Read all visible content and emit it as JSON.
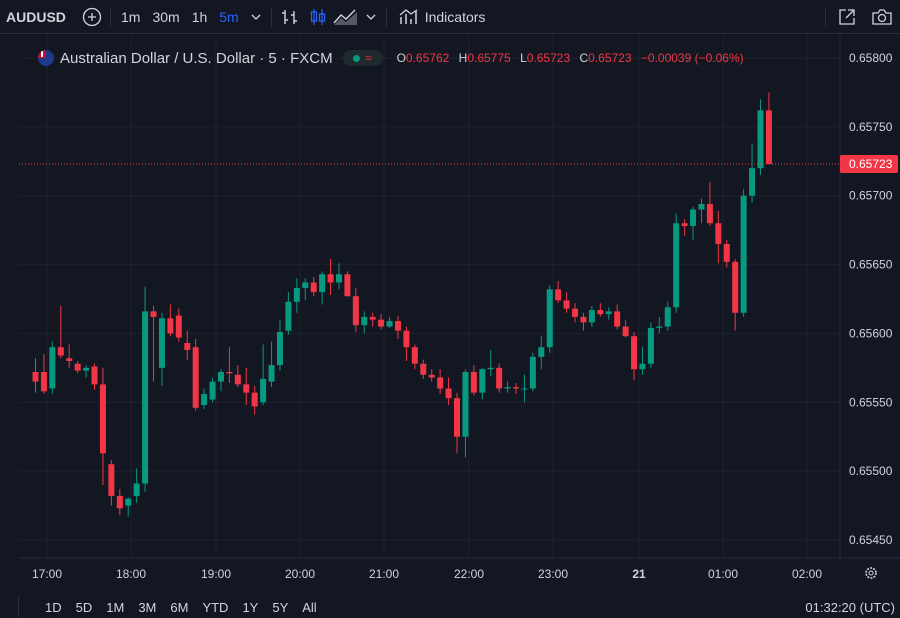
{
  "toolbar": {
    "symbol": "AUDUSD",
    "intervals": [
      "1m",
      "30m",
      "1h",
      "5m"
    ],
    "active_interval": "5m",
    "indicators_label": "Indicators"
  },
  "legend": {
    "title": "Australian Dollar / U.S. Dollar · 5 · FXCM",
    "ohlc": [
      {
        "k": "O",
        "v": "0.65762"
      },
      {
        "k": "H",
        "v": "0.65775"
      },
      {
        "k": "L",
        "v": "0.65723"
      },
      {
        "k": "C",
        "v": "0.65723"
      }
    ],
    "change": "−0.00039 (−0.06%)"
  },
  "colors": {
    "up": "#089981",
    "down": "#f23645",
    "background": "#131722",
    "grid": "#1e222d",
    "text": "#d1d4dc",
    "active": "#2962ff"
  },
  "chart_data": {
    "type": "candlestick",
    "ylim": [
      0.6544,
      0.6581
    ],
    "y_ticks": [
      "0.65800",
      "0.65750",
      "0.65700",
      "0.65650",
      "0.65600",
      "0.65550",
      "0.65500",
      "0.65450"
    ],
    "x_ticks": [
      "17:00",
      "18:00",
      "19:00",
      "20:00",
      "21:00",
      "22:00",
      "23:00",
      "21",
      "01:00",
      "02:00"
    ],
    "last_price": "0.65723",
    "candles": [
      [
        0.65572,
        0.65582,
        0.65557,
        0.65565
      ],
      [
        0.65572,
        0.65585,
        0.65556,
        0.65558
      ],
      [
        0.6556,
        0.65594,
        0.65556,
        0.6559
      ],
      [
        0.6559,
        0.6562,
        0.65582,
        0.65584
      ],
      [
        0.65582,
        0.65592,
        0.65575,
        0.6558
      ],
      [
        0.65578,
        0.6558,
        0.65571,
        0.65573
      ],
      [
        0.65573,
        0.65577,
        0.65568,
        0.65575
      ],
      [
        0.65576,
        0.65578,
        0.65559,
        0.65563
      ],
      [
        0.65563,
        0.65575,
        0.6549,
        0.65513
      ],
      [
        0.65505,
        0.65508,
        0.65475,
        0.65482
      ],
      [
        0.65482,
        0.65487,
        0.65468,
        0.65473
      ],
      [
        0.65475,
        0.65481,
        0.65467,
        0.6548
      ],
      [
        0.65482,
        0.65502,
        0.65477,
        0.65491
      ],
      [
        0.65491,
        0.65634,
        0.65485,
        0.65616
      ],
      [
        0.65616,
        0.6562,
        0.65565,
        0.65612
      ],
      [
        0.65575,
        0.65615,
        0.65562,
        0.65611
      ],
      [
        0.65611,
        0.65621,
        0.65598,
        0.656
      ],
      [
        0.65613,
        0.65618,
        0.65594,
        0.65597
      ],
      [
        0.65593,
        0.65602,
        0.65581,
        0.65588
      ],
      [
        0.6559,
        0.65596,
        0.65544,
        0.65546
      ],
      [
        0.65548,
        0.6556,
        0.65545,
        0.65556
      ],
      [
        0.65552,
        0.65568,
        0.6555,
        0.65565
      ],
      [
        0.65565,
        0.65574,
        0.65558,
        0.65572
      ],
      [
        0.65572,
        0.6559,
        0.65564,
        0.65571
      ],
      [
        0.6557,
        0.65577,
        0.65561,
        0.65563
      ],
      [
        0.65563,
        0.65575,
        0.65548,
        0.65557
      ],
      [
        0.65557,
        0.65562,
        0.65541,
        0.65547
      ],
      [
        0.6555,
        0.65592,
        0.65548,
        0.65567
      ],
      [
        0.65565,
        0.65594,
        0.65561,
        0.65577
      ],
      [
        0.65577,
        0.6561,
        0.65573,
        0.65601
      ],
      [
        0.65602,
        0.6563,
        0.65599,
        0.65623
      ],
      [
        0.65623,
        0.6564,
        0.65615,
        0.65633
      ],
      [
        0.65633,
        0.6564,
        0.65624,
        0.65637
      ],
      [
        0.65637,
        0.65641,
        0.65627,
        0.6563
      ],
      [
        0.6563,
        0.65645,
        0.65621,
        0.65643
      ],
      [
        0.65643,
        0.65654,
        0.65628,
        0.65637
      ],
      [
        0.65637,
        0.65651,
        0.65632,
        0.65643
      ],
      [
        0.65643,
        0.65645,
        0.65627,
        0.65627
      ],
      [
        0.65627,
        0.65633,
        0.65601,
        0.65606
      ],
      [
        0.65606,
        0.65616,
        0.656,
        0.65612
      ],
      [
        0.65612,
        0.65615,
        0.65605,
        0.6561
      ],
      [
        0.6561,
        0.65614,
        0.65603,
        0.65605
      ],
      [
        0.65605,
        0.65612,
        0.65604,
        0.65609
      ],
      [
        0.65609,
        0.65613,
        0.65596,
        0.65602
      ],
      [
        0.65602,
        0.65605,
        0.6558,
        0.6559
      ],
      [
        0.6559,
        0.65592,
        0.65574,
        0.65578
      ],
      [
        0.65578,
        0.65581,
        0.65567,
        0.6557
      ],
      [
        0.6557,
        0.65574,
        0.65565,
        0.65568
      ],
      [
        0.65568,
        0.65574,
        0.65556,
        0.6556
      ],
      [
        0.6556,
        0.65568,
        0.65548,
        0.65553
      ],
      [
        0.65553,
        0.65557,
        0.65513,
        0.65525
      ],
      [
        0.65525,
        0.65574,
        0.6551,
        0.65572
      ],
      [
        0.65572,
        0.65577,
        0.65555,
        0.65557
      ],
      [
        0.65557,
        0.65575,
        0.65552,
        0.65574
      ],
      [
        0.65574,
        0.65588,
        0.65569,
        0.65575
      ],
      [
        0.65575,
        0.65578,
        0.65557,
        0.6556
      ],
      [
        0.6556,
        0.65565,
        0.65557,
        0.65561
      ],
      [
        0.65561,
        0.65564,
        0.65556,
        0.6556
      ],
      [
        0.6556,
        0.6557,
        0.6555,
        0.6556
      ],
      [
        0.6556,
        0.65586,
        0.65558,
        0.65583
      ],
      [
        0.65583,
        0.65598,
        0.65574,
        0.6559
      ],
      [
        0.6559,
        0.65635,
        0.65586,
        0.65632
      ],
      [
        0.65632,
        0.65638,
        0.65622,
        0.65624
      ],
      [
        0.65624,
        0.6563,
        0.65615,
        0.65618
      ],
      [
        0.65618,
        0.65622,
        0.65608,
        0.65612
      ],
      [
        0.65612,
        0.65615,
        0.65602,
        0.65608
      ],
      [
        0.65608,
        0.6562,
        0.65605,
        0.65617
      ],
      [
        0.65617,
        0.65622,
        0.65612,
        0.65614
      ],
      [
        0.65614,
        0.65619,
        0.6561,
        0.65616
      ],
      [
        0.65616,
        0.65621,
        0.65603,
        0.65605
      ],
      [
        0.65605,
        0.6561,
        0.65597,
        0.65598
      ],
      [
        0.65598,
        0.65601,
        0.65566,
        0.65574
      ],
      [
        0.65574,
        0.6559,
        0.6557,
        0.65578
      ],
      [
        0.65578,
        0.65608,
        0.65575,
        0.65604
      ],
      [
        0.65604,
        0.65612,
        0.656,
        0.65605
      ],
      [
        0.65605,
        0.65623,
        0.65602,
        0.65619
      ],
      [
        0.65619,
        0.65687,
        0.65615,
        0.6568
      ],
      [
        0.6568,
        0.65683,
        0.65671,
        0.65678
      ],
      [
        0.65678,
        0.65692,
        0.65668,
        0.6569
      ],
      [
        0.6569,
        0.65698,
        0.6568,
        0.65694
      ],
      [
        0.65694,
        0.6571,
        0.65678,
        0.6568
      ],
      [
        0.6568,
        0.65689,
        0.65651,
        0.65665
      ],
      [
        0.65665,
        0.65668,
        0.65648,
        0.65652
      ],
      [
        0.65652,
        0.65654,
        0.65602,
        0.65615
      ],
      [
        0.65615,
        0.65705,
        0.65612,
        0.657
      ],
      [
        0.657,
        0.65738,
        0.65695,
        0.6572
      ],
      [
        0.6572,
        0.6577,
        0.65715,
        0.65762
      ],
      [
        0.65762,
        0.65775,
        0.65723,
        0.65723
      ]
    ]
  },
  "bottom": {
    "ranges": [
      "1D",
      "5D",
      "1M",
      "3M",
      "6M",
      "YTD",
      "1Y",
      "5Y",
      "All"
    ],
    "clock": "01:32:20 (UTC)"
  }
}
